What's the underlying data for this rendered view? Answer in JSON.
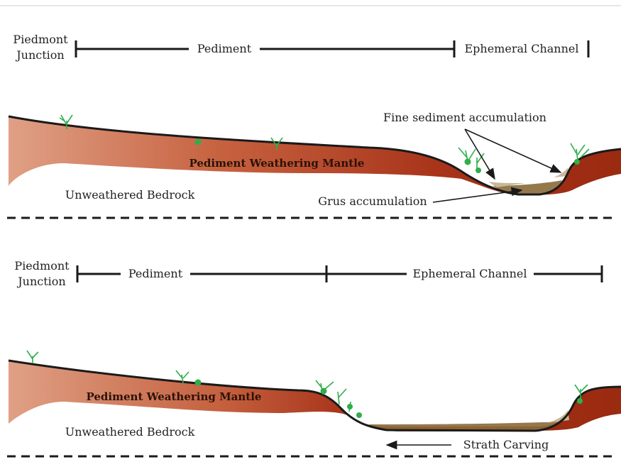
{
  "panels": [
    {
      "scale_bar": {
        "piedmont_junction": [
          "Piedmont",
          "Junction"
        ],
        "pediment": "Pediment",
        "ephemeral_channel": "Ephemeral Channel"
      },
      "labels": {
        "mantle": "Pediment Weathering Mantle",
        "bedrock": "Unweathered Bedrock",
        "fine_sediment": "Fine sediment accumulation",
        "grus": "Grus accumulation"
      }
    },
    {
      "scale_bar": {
        "piedmont_junction": [
          "Piedmont",
          "Junction"
        ],
        "pediment": "Pediment",
        "ephemeral_channel": "Ephemeral Channel"
      },
      "labels": {
        "mantle": "Pediment Weathering Mantle",
        "bedrock": "Unweathered Bedrock",
        "strath": "Strath Carving"
      }
    }
  ],
  "colors": {
    "mantle_dark": "#9e2d12",
    "mantle_light": "#e0a085",
    "sediment": "#8a6a3a",
    "fine_sediment": "#c9b79a",
    "vegetation": "#2fae4a",
    "outline": "#1a1a1a"
  }
}
